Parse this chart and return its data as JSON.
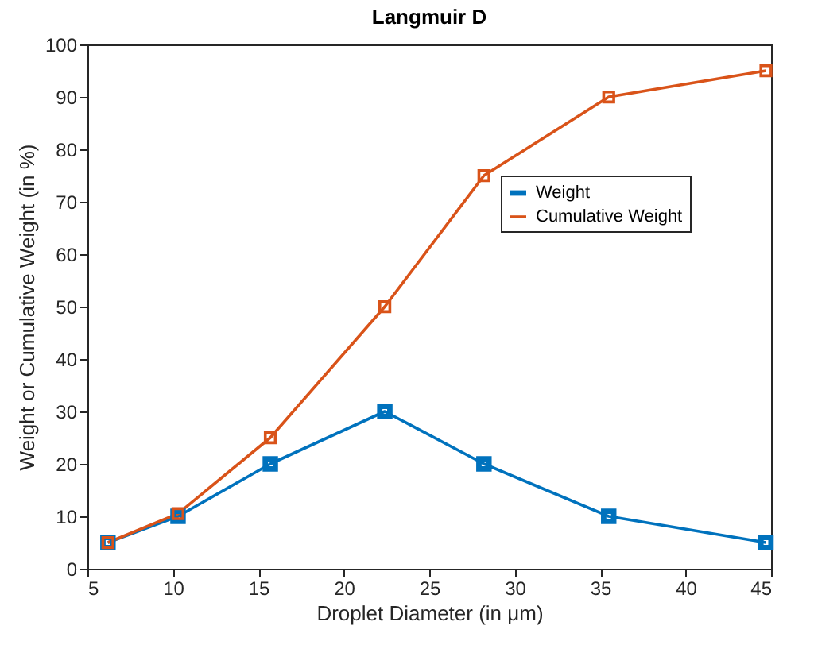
{
  "chart_data": {
    "type": "line",
    "title": "Langmuir D",
    "xlabel": "Droplet Diameter (in μm)",
    "ylabel": "Weight or Cumulative Weight (in %)",
    "x": [
      6.2,
      10.3,
      15.7,
      22.4,
      28.2,
      35.5,
      44.7
    ],
    "series": [
      {
        "name": "Weight",
        "color": "#0072bd",
        "values": [
          5,
          10,
          20,
          30,
          20,
          10,
          5
        ]
      },
      {
        "name": "Cumulative Weight",
        "color": "#d95319",
        "values": [
          5,
          10.5,
          25,
          50,
          75,
          90,
          95
        ]
      }
    ],
    "xlim": [
      5,
      45
    ],
    "xticks": [
      5,
      10,
      15,
      20,
      25,
      30,
      35,
      40,
      45
    ],
    "ylim": [
      0,
      100
    ],
    "yticks": [
      0,
      10,
      20,
      30,
      40,
      50,
      60,
      70,
      80,
      90,
      100
    ],
    "grid": false,
    "legend": "right",
    "marker": "square",
    "line_style": "solid"
  }
}
